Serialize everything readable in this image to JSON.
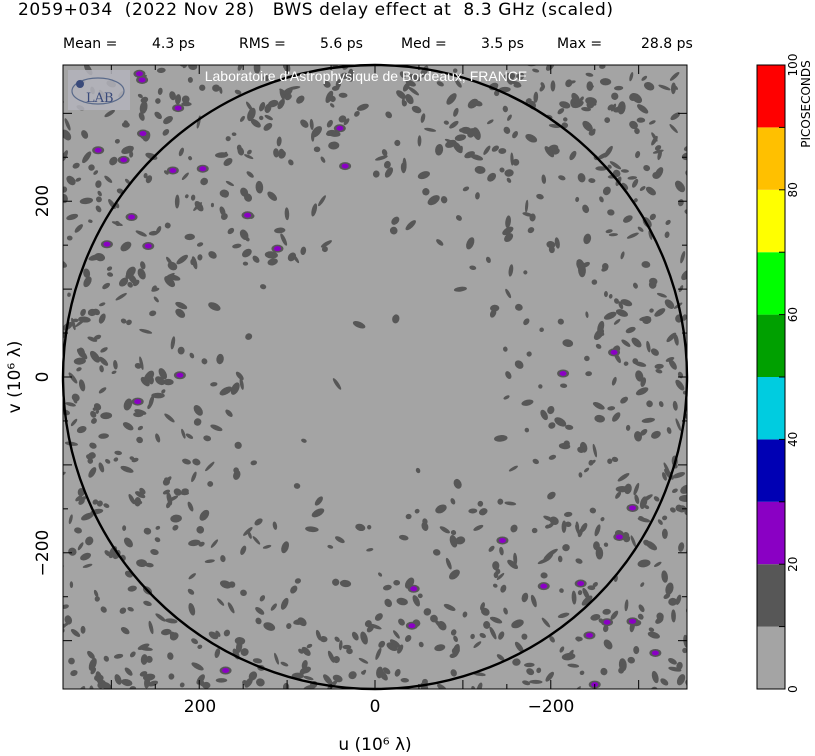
{
  "header": {
    "title": "2059+034  (2022 Nov 28)   BWS delay effect at  8.3 GHz (scaled)",
    "stats": [
      {
        "label": "Mean =",
        "value": "4.3 ps"
      },
      {
        "label": "RMS =",
        "value": "5.6 ps"
      },
      {
        "label": "Med =",
        "value": "3.5 ps"
      },
      {
        "label": "Max =",
        "value": "28.8 ps"
      }
    ]
  },
  "credit": "Laboratoire d'Astrophysique de Bordeaux, FRANCE",
  "logo_text": "LAB",
  "chart_data": {
    "type": "heatmap",
    "title": "2059+034  (2022 Nov 28)   BWS delay effect at  8.3 GHz (scaled)",
    "xlabel": "u  (10⁶ λ)",
    "ylabel": "v  (10⁶ λ)",
    "xlim": [
      355,
      -355
    ],
    "ylim": [
      -355,
      355
    ],
    "x_ticks": [
      200,
      0,
      -200
    ],
    "y_ticks": [
      200,
      0,
      -200
    ],
    "x_tick_labels": [
      "200",
      "0",
      "−200"
    ],
    "y_tick_labels": [
      "200",
      "0",
      "−200"
    ],
    "circle_radius": 355,
    "colorbar": {
      "label": "PICOSECONDS",
      "range": [
        0,
        100
      ],
      "ticks": [
        0,
        20,
        40,
        60,
        80,
        100
      ],
      "bands": [
        "#a4a4a4",
        "#575757",
        "#8a00c4",
        "#0000b4",
        "#00cce0",
        "#00a000",
        "#00ff00",
        "#ffff00",
        "#ffc000",
        "#ff0000"
      ]
    },
    "background_color": "#a4a4a4",
    "level_10_20_color": "#575757",
    "level_20_30_color": "#8a00c4",
    "purple_spots": [
      [
        268,
        345
      ],
      [
        265,
        338
      ],
      [
        224,
        306
      ],
      [
        264,
        277
      ],
      [
        315,
        258
      ],
      [
        286,
        247
      ],
      [
        230,
        235
      ],
      [
        196,
        237
      ],
      [
        145,
        184
      ],
      [
        277,
        182
      ],
      [
        305,
        151
      ],
      [
        258,
        149
      ],
      [
        111,
        146
      ],
      [
        40,
        283
      ],
      [
        34,
        240
      ],
      [
        222,
        2
      ],
      [
        270,
        -28
      ],
      [
        -214,
        4
      ],
      [
        -272,
        28
      ],
      [
        -293,
        -149
      ],
      [
        -278,
        -182
      ],
      [
        -145,
        -186
      ],
      [
        -44,
        -241
      ],
      [
        -192,
        -238
      ],
      [
        -234,
        -235
      ],
      [
        -264,
        -279
      ],
      [
        -293,
        -278
      ],
      [
        -319,
        -314
      ],
      [
        -250,
        -350
      ],
      [
        -42,
        -283
      ],
      [
        170,
        -334
      ],
      [
        -244,
        -294
      ]
    ]
  }
}
